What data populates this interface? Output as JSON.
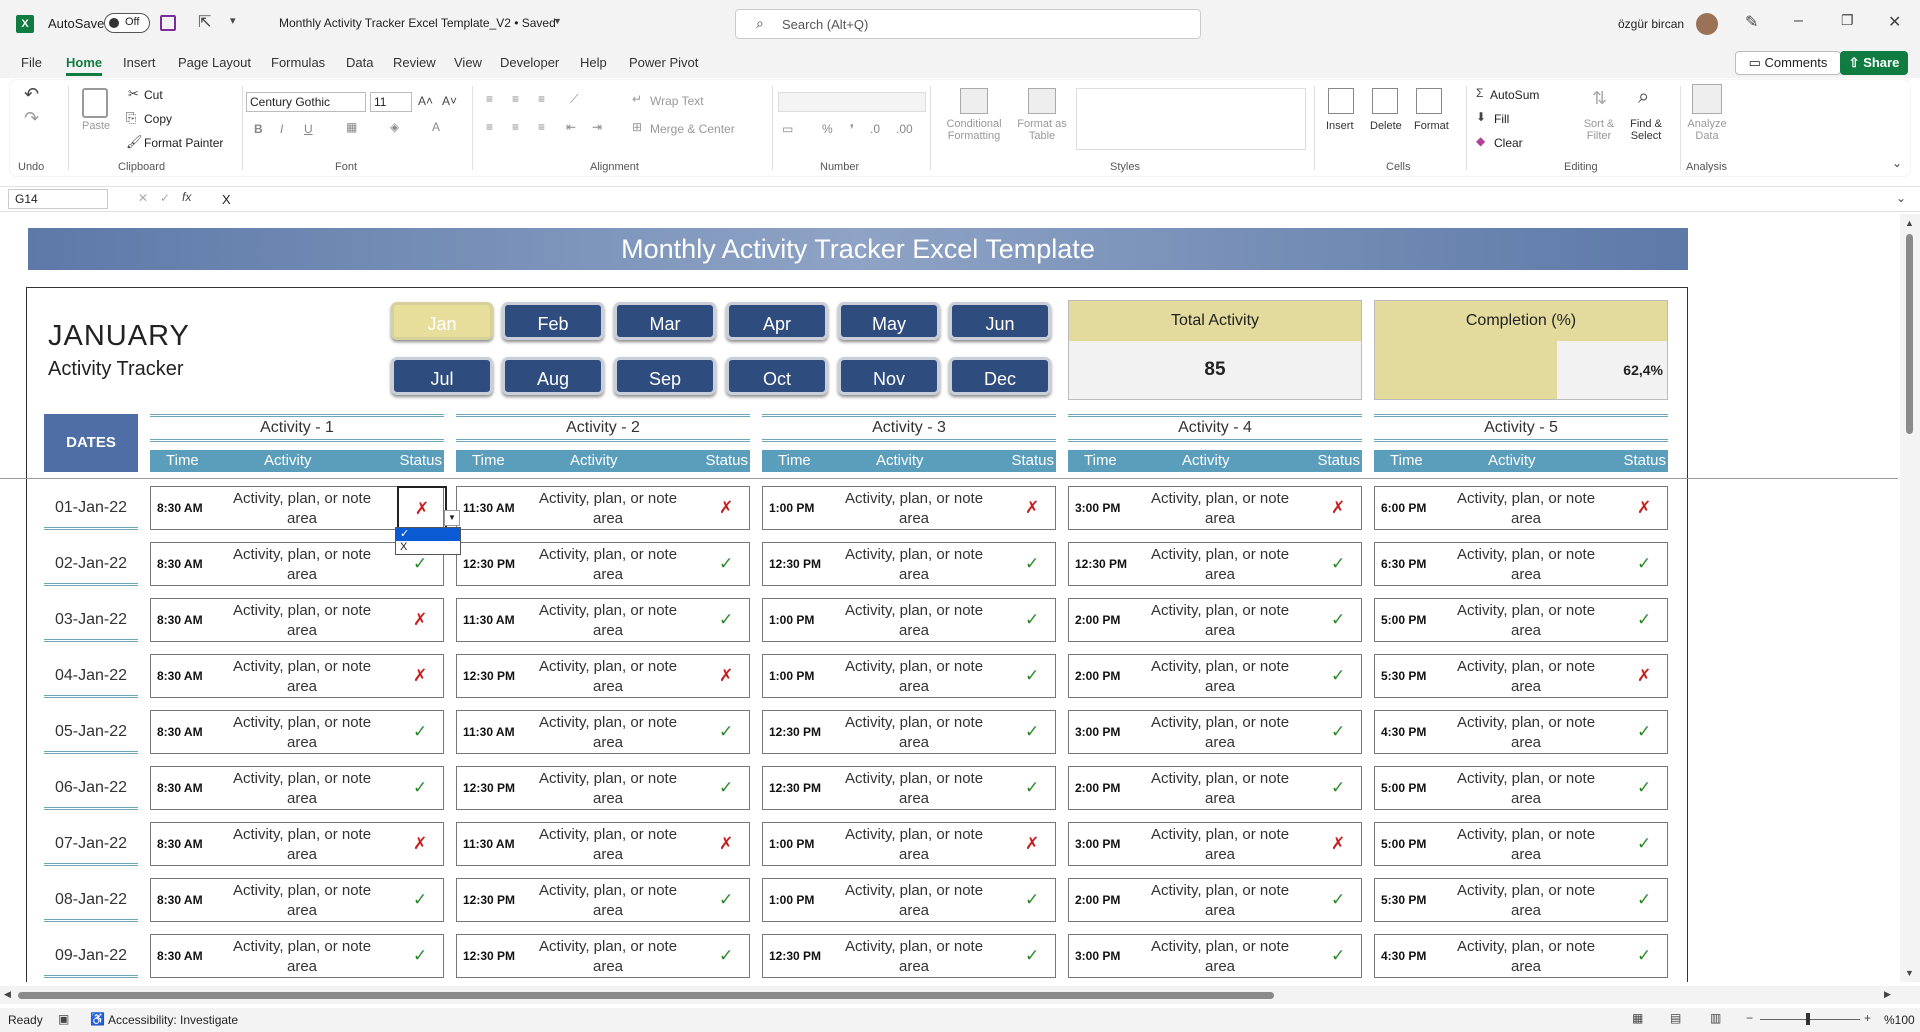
{
  "app": {
    "autosave_label": "AutoSave",
    "autosave_state": "Off",
    "doc_title": "Monthly Activity Tracker Excel Template_V2 • Saved",
    "search_placeholder": "Search (Alt+Q)",
    "user": "özgür bircan"
  },
  "menu": [
    "File",
    "Home",
    "Insert",
    "Page Layout",
    "Formulas",
    "Data",
    "Review",
    "View",
    "Developer",
    "Help",
    "Power Pivot"
  ],
  "comments_label": "Comments",
  "share_label": "Share",
  "ribbon": {
    "undo": "Undo",
    "paste": "Paste",
    "cut": "Cut",
    "copy": "Copy",
    "format_painter": "Format Painter",
    "clipboard": "Clipboard",
    "font_name": "Century Gothic",
    "font_size": "11",
    "font": "Font",
    "wrap_text": "Wrap Text",
    "merge_center": "Merge & Center",
    "alignment": "Alignment",
    "number": "Number",
    "conditional_formatting": "Conditional Formatting",
    "format_as_table": "Format as Table",
    "styles": "Styles",
    "insert": "Insert",
    "delete": "Delete",
    "format": "Format",
    "cells": "Cells",
    "autosum": "AutoSum",
    "fill": "Fill",
    "clear": "Clear",
    "sort_filter": "Sort & Filter",
    "find_select": "Find & Select",
    "editing": "Editing",
    "analyze_data": "Analyze Data",
    "analysis": "Analysis"
  },
  "formula": {
    "name_box": "G14",
    "value": "X"
  },
  "sheet": {
    "banner": "Monthly Activity Tracker Excel Template",
    "month": "JANUARY",
    "subtitle": "Activity Tracker",
    "months": [
      "Jan",
      "Feb",
      "Mar",
      "Apr",
      "May",
      "Jun",
      "Jul",
      "Aug",
      "Sep",
      "Oct",
      "Nov",
      "Dec"
    ],
    "active_month": "Jan",
    "total_label": "Total Activity",
    "total_value": "85",
    "completion_label": "Completion (%)",
    "completion_value": "62,4%",
    "completion_fraction": 0.624,
    "dates_label": "DATES",
    "activities": [
      "Activity - 1",
      "Activity - 2",
      "Activity - 3",
      "Activity - 4",
      "Activity - 5"
    ],
    "sub": {
      "time": "Time",
      "activity": "Activity",
      "status": "Status"
    },
    "note": "Activity, plan, or note area",
    "dropdown_options": [
      "✓",
      "X"
    ],
    "rows": [
      {
        "date": "01-Jan-22",
        "times": [
          "8:30 AM",
          "11:30 AM",
          "1:00 PM",
          "3:00 PM",
          "6:00 PM"
        ],
        "status": [
          "✗",
          "✗",
          "✗",
          "✗",
          "✗"
        ]
      },
      {
        "date": "02-Jan-22",
        "times": [
          "8:30 AM",
          "12:30 PM",
          "12:30 PM",
          "12:30 PM",
          "6:30 PM"
        ],
        "status": [
          "✓",
          "✓",
          "✓",
          "✓",
          "✓"
        ]
      },
      {
        "date": "03-Jan-22",
        "times": [
          "8:30 AM",
          "11:30 AM",
          "1:00 PM",
          "2:00 PM",
          "5:00 PM"
        ],
        "status": [
          "✗",
          "✓",
          "✓",
          "✓",
          "✓"
        ]
      },
      {
        "date": "04-Jan-22",
        "times": [
          "8:30 AM",
          "12:30 PM",
          "1:00 PM",
          "2:00 PM",
          "5:30 PM"
        ],
        "status": [
          "✗",
          "✗",
          "✓",
          "✓",
          "✗"
        ]
      },
      {
        "date": "05-Jan-22",
        "times": [
          "8:30 AM",
          "11:30 AM",
          "12:30 PM",
          "3:00 PM",
          "4:30 PM"
        ],
        "status": [
          "✓",
          "✓",
          "✓",
          "✓",
          "✓"
        ]
      },
      {
        "date": "06-Jan-22",
        "times": [
          "8:30 AM",
          "12:30 PM",
          "12:30 PM",
          "2:00 PM",
          "5:00 PM"
        ],
        "status": [
          "✓",
          "✓",
          "✓",
          "✓",
          "✓"
        ]
      },
      {
        "date": "07-Jan-22",
        "times": [
          "8:30 AM",
          "11:30 AM",
          "1:00 PM",
          "3:00 PM",
          "5:00 PM"
        ],
        "status": [
          "✗",
          "✗",
          "✗",
          "✗",
          "✓"
        ]
      },
      {
        "date": "08-Jan-22",
        "times": [
          "8:30 AM",
          "12:30 PM",
          "1:00 PM",
          "2:00 PM",
          "5:30 PM"
        ],
        "status": [
          "✓",
          "✓",
          "✓",
          "✓",
          "✓"
        ]
      },
      {
        "date": "09-Jan-22",
        "times": [
          "8:30 AM",
          "12:30 PM",
          "12:30 PM",
          "3:00 PM",
          "4:30 PM"
        ],
        "status": [
          "✓",
          "✓",
          "✓",
          "✓",
          "✓"
        ]
      }
    ]
  },
  "statusbar": {
    "ready": "Ready",
    "accessibility": "Accessibility: Investigate",
    "zoom": "%100"
  }
}
